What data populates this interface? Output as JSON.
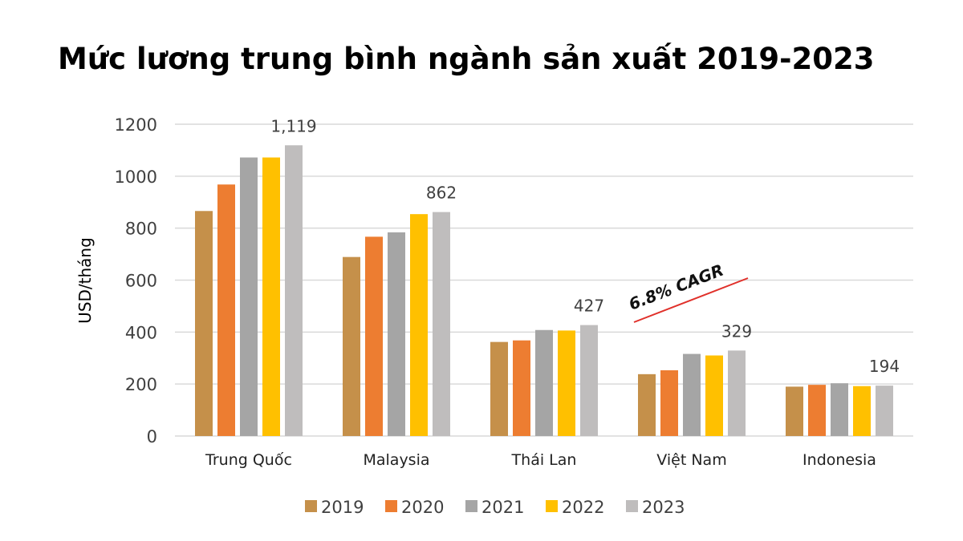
{
  "title": "Mức lương trung bình ngành sản xuất 2019-2023",
  "chart_data": {
    "type": "bar",
    "title": "Mức lương trung bình ngành sản xuất 2019-2023",
    "ylabel": "USD/tháng",
    "xlabel": "",
    "ylim": [
      0,
      1200
    ],
    "yticks": [
      0,
      200,
      400,
      600,
      800,
      1000,
      1200
    ],
    "grid": true,
    "legend_position": "bottom",
    "categories": [
      "Trung Quốc",
      "Malaysia",
      "Thái Lan",
      "Việt Nam",
      "Indonesia"
    ],
    "series": [
      {
        "name": "2019",
        "color": "#C5904A",
        "values": [
          866,
          689,
          362,
          238,
          190
        ]
      },
      {
        "name": "2020",
        "color": "#ED7D31",
        "values": [
          968,
          767,
          368,
          253,
          197
        ]
      },
      {
        "name": "2021",
        "color": "#A5A5A5",
        "values": [
          1072,
          784,
          408,
          316,
          203
        ]
      },
      {
        "name": "2022",
        "color": "#FFC000",
        "values": [
          1072,
          854,
          406,
          310,
          192
        ]
      },
      {
        "name": "2023",
        "color": "#BFBDBD",
        "values": [
          1119,
          862,
          427,
          329,
          194
        ]
      }
    ],
    "data_labels": [
      "1,119",
      "862",
      "427",
      "329",
      "194"
    ],
    "annotation": {
      "text": "6.8% CAGR",
      "color": "#E0302A"
    }
  }
}
